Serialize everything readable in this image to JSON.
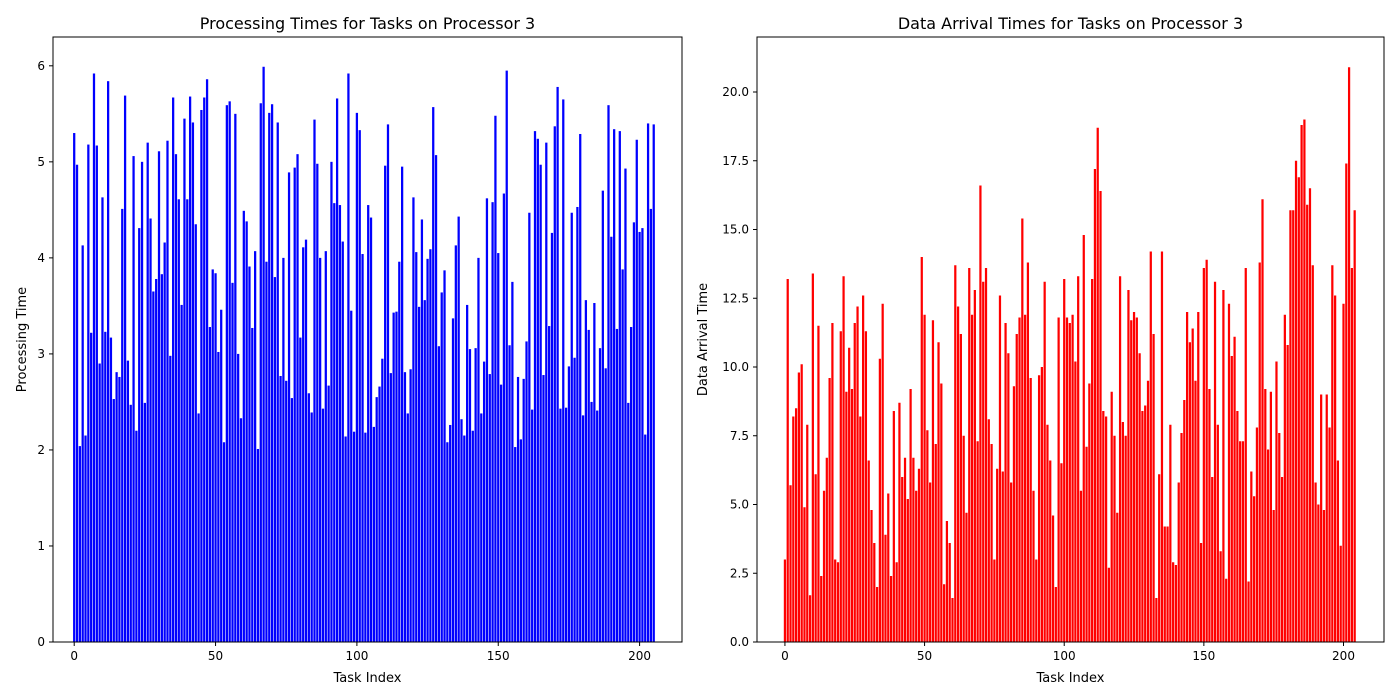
{
  "chart_data": [
    {
      "type": "bar",
      "title": "Processing Times for Tasks on Processor 3",
      "xlabel": "Task Index",
      "ylabel": "Processing Time",
      "xlim": [
        -7.5,
        215
      ],
      "ylim": [
        0,
        6.3
      ],
      "xticks": [
        0,
        50,
        100,
        150,
        200
      ],
      "yticks": [
        0,
        1,
        2,
        3,
        4,
        5,
        6
      ],
      "ytick_labels": [
        "0",
        "1",
        "2",
        "3",
        "4",
        "5",
        "6"
      ],
      "color": "#0000ff",
      "grid": false,
      "x_start": 0,
      "values": [
        5.3,
        4.97,
        2.04,
        4.13,
        2.15,
        5.18,
        3.22,
        5.92,
        5.17,
        2.9,
        4.63,
        3.23,
        5.84,
        3.17,
        2.53,
        2.81,
        2.76,
        4.51,
        5.69,
        2.93,
        2.47,
        5.06,
        2.2,
        4.31,
        5.0,
        2.49,
        5.2,
        4.41,
        3.65,
        3.78,
        5.11,
        3.83,
        4.16,
        5.22,
        2.98,
        5.67,
        5.08,
        4.61,
        3.51,
        5.45,
        4.61,
        5.68,
        5.41,
        4.35,
        2.38,
        5.54,
        5.67,
        5.86,
        3.28,
        3.88,
        3.84,
        3.02,
        3.46,
        2.08,
        5.59,
        5.63,
        3.74,
        5.5,
        3.0,
        2.33,
        4.49,
        4.38,
        3.91,
        3.27,
        4.07,
        2.01,
        5.61,
        5.99,
        3.96,
        5.51,
        5.6,
        3.8,
        5.41,
        2.77,
        4.0,
        2.72,
        4.89,
        2.54,
        4.94,
        5.08,
        3.17,
        4.11,
        4.19,
        2.59,
        2.39,
        5.44,
        4.98,
        4.0,
        2.43,
        4.07,
        2.67,
        5.0,
        4.57,
        5.66,
        4.55,
        4.17,
        2.14,
        5.92,
        3.45,
        2.19,
        5.51,
        5.33,
        4.04,
        2.18,
        4.55,
        4.42,
        2.24,
        2.55,
        2.66,
        2.95,
        4.96,
        5.39,
        2.8,
        3.43,
        3.44,
        3.96,
        4.95,
        2.81,
        2.38,
        2.84,
        4.63,
        4.06,
        3.49,
        4.4,
        3.56,
        3.99,
        4.09,
        5.57,
        5.07,
        3.08,
        3.64,
        3.87,
        2.08,
        2.26,
        3.37,
        4.13,
        4.43,
        2.32,
        2.15,
        3.51,
        3.05,
        2.2,
        3.06,
        4.0,
        2.38,
        2.92,
        4.62,
        2.79,
        4.58,
        5.48,
        4.05,
        2.68,
        4.67,
        5.95,
        3.09,
        3.75,
        2.03,
        2.76,
        2.11,
        2.74,
        3.13,
        4.47,
        2.42,
        5.32,
        5.24,
        4.97,
        2.78,
        5.2,
        3.29,
        4.26,
        5.37,
        5.78,
        2.43,
        5.65,
        2.44,
        2.87,
        4.47,
        2.96,
        4.53,
        5.29,
        2.36,
        3.56,
        3.25,
        2.5,
        3.53,
        2.41,
        3.06,
        4.7,
        2.85,
        5.59,
        4.22,
        5.34,
        3.26,
        5.32,
        3.88,
        4.93,
        2.49,
        3.28,
        4.37,
        5.23,
        4.27,
        4.31,
        2.16,
        5.4,
        4.51,
        5.39
      ]
    },
    {
      "type": "bar",
      "title": "Data Arrival Times for Tasks on Processor 3",
      "xlabel": "Task Index",
      "ylabel": "Data Arrival Time",
      "xlim": [
        -10,
        214.5
      ],
      "ylim": [
        0,
        22.0
      ],
      "xticks": [
        0,
        50,
        100,
        150,
        200
      ],
      "yticks": [
        0,
        2.5,
        5,
        7.5,
        10,
        12.5,
        15,
        17.5,
        20
      ],
      "ytick_labels": [
        "0.0",
        "2.5",
        "5.0",
        "7.5",
        "10.0",
        "12.5",
        "15.0",
        "17.5",
        "20.0"
      ],
      "color": "#ff0000",
      "grid": false,
      "x_start": 0,
      "values": [
        3.0,
        13.2,
        5.7,
        8.2,
        8.5,
        9.8,
        10.1,
        4.9,
        7.9,
        1.7,
        13.4,
        6.1,
        11.5,
        2.4,
        5.5,
        6.7,
        9.6,
        11.6,
        3.0,
        2.9,
        11.3,
        13.3,
        9.1,
        10.7,
        9.2,
        11.6,
        12.2,
        8.2,
        12.6,
        11.3,
        6.6,
        4.8,
        3.6,
        2.0,
        10.3,
        12.3,
        3.9,
        5.4,
        2.4,
        8.4,
        2.9,
        8.7,
        6.0,
        6.7,
        5.2,
        9.2,
        6.7,
        5.5,
        6.3,
        14.0,
        11.9,
        7.7,
        5.8,
        11.7,
        7.2,
        10.9,
        9.4,
        2.1,
        4.4,
        3.6,
        1.6,
        13.7,
        12.2,
        11.2,
        7.5,
        4.7,
        13.6,
        11.9,
        12.8,
        7.3,
        16.6,
        13.1,
        13.6,
        8.1,
        7.2,
        3.0,
        6.3,
        12.6,
        6.2,
        11.6,
        10.5,
        5.8,
        9.3,
        11.2,
        11.8,
        15.4,
        11.9,
        13.8,
        9.6,
        5.5,
        3.0,
        9.7,
        10.0,
        13.1,
        7.9,
        6.6,
        4.6,
        2.0,
        11.8,
        6.5,
        13.2,
        11.8,
        11.6,
        11.9,
        10.2,
        13.3,
        5.5,
        14.8,
        7.1,
        9.4,
        13.2,
        17.2,
        18.7,
        16.4,
        8.4,
        8.2,
        2.7,
        9.1,
        7.5,
        4.7,
        13.3,
        8.0,
        7.5,
        12.8,
        11.7,
        12.0,
        11.8,
        10.5,
        8.4,
        8.6,
        9.5,
        14.2,
        11.2,
        1.6,
        6.1,
        14.2,
        4.2,
        4.2,
        7.9,
        2.9,
        2.8,
        5.8,
        7.6,
        8.8,
        12.0,
        10.9,
        11.4,
        9.5,
        12.0,
        3.6,
        13.6,
        13.9,
        9.2,
        6.0,
        13.1,
        7.9,
        3.3,
        12.8,
        2.3,
        12.3,
        10.4,
        11.1,
        8.4,
        7.3,
        7.3,
        13.6,
        2.2,
        6.2,
        5.3,
        7.8,
        13.8,
        16.1,
        9.2,
        7.0,
        9.1,
        4.8,
        10.2,
        7.6,
        6.0,
        11.9,
        10.8,
        15.7,
        15.7,
        17.5,
        16.9,
        18.8,
        19.0,
        15.9,
        16.5,
        13.7,
        5.8,
        5.0,
        9.0,
        4.8,
        9.0,
        7.8,
        13.7,
        12.6,
        6.6,
        3.5,
        12.3,
        17.4,
        20.9,
        13.6,
        15.7
      ]
    }
  ]
}
